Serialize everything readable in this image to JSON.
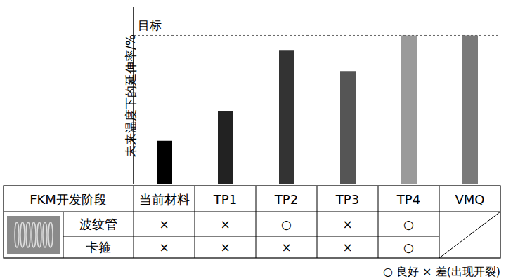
{
  "chart_data": {
    "type": "bar",
    "y_label": "未来温度下的延伸率/%",
    "categories": [
      "当前材料",
      "TP1",
      "TP2",
      "TP3",
      "TP4",
      "VMQ"
    ],
    "values": [
      24.6,
      41.3,
      75.4,
      63.9,
      84,
      84
    ],
    "colors": [
      "#000000",
      "#222222",
      "#333333",
      "#555555",
      "#9a9a9a",
      "#7a7a7a"
    ],
    "ylim": [
      0,
      100
    ],
    "tick_labels": false,
    "grid": false,
    "target": {
      "value": 84,
      "label": "目标"
    }
  },
  "table": {
    "header": "FKM开发阶段",
    "rows": [
      {
        "label": "波纹管",
        "values": [
          "×",
          "×",
          "○",
          "×",
          "○"
        ]
      },
      {
        "label": "卡箍",
        "values": [
          "×",
          "×",
          "×",
          "×",
          "○"
        ]
      }
    ],
    "legend_note": "○ 良好 × 差(出现开裂)"
  }
}
